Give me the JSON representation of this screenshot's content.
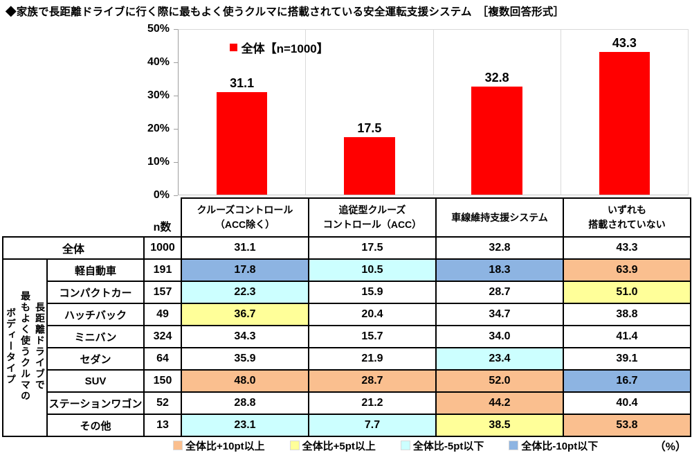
{
  "title": "◆家族で長距離ドライブに行く際に最もよく使うクルマに搭載されている安全運転支援システム　［複数回答形式］",
  "chart_data": {
    "type": "bar",
    "title": "家族で長距離ドライブに行く際に最もよく使うクルマに搭載されている安全運転支援システム",
    "categories": [
      "クルーズコントロール（ACC除く）",
      "追従型クルーズコントロール（ACC）",
      "車線維持支援システム",
      "いずれも搭載されていない"
    ],
    "values": [
      31.1,
      17.5,
      32.8,
      43.3
    ],
    "value_labels": [
      "31.1",
      "17.5",
      "32.8",
      "43.3"
    ],
    "series_name": "全体",
    "legend_label": "全体【n=1000】",
    "legend_position": "top-left-inside-plot",
    "bar_color": "#FF0000",
    "xlabel": "",
    "ylabel": "",
    "unit": "%",
    "ylim": [
      0,
      50
    ],
    "yticks": [
      "50%",
      "40%",
      "30%",
      "20%",
      "10%",
      "0%"
    ],
    "grid": "vertical category separators only"
  },
  "table": {
    "n_label": "n数",
    "col_headers": [
      [
        "クルーズコントロール",
        "（ACC除く）"
      ],
      [
        "追従型クルーズ",
        "コントロール（ACC）"
      ],
      [
        "車線維持支援システム"
      ],
      [
        "いずれも",
        "搭載されていない"
      ]
    ],
    "side_label_lines": [
      "長距離ドライブで",
      "最もよく使うクルマの",
      "ボディータイプ"
    ],
    "side_label": "長距離ドライブで最もよく使うクルマのボディータイプ",
    "total_row": {
      "label": "全体",
      "n": "1000",
      "values": [
        "31.1",
        "17.5",
        "32.8",
        "43.3"
      ],
      "colors": [
        "white",
        "white",
        "white",
        "white"
      ]
    },
    "rows": [
      {
        "label": "軽自動車",
        "n": "191",
        "values": [
          "17.8",
          "10.5",
          "18.3",
          "63.9"
        ],
        "colors": [
          "blue",
          "cyan",
          "blue",
          "orange"
        ]
      },
      {
        "label": "コンパクトカー",
        "n": "157",
        "values": [
          "22.3",
          "15.9",
          "28.7",
          "51.0"
        ],
        "colors": [
          "cyan",
          "white",
          "white",
          "yellow"
        ]
      },
      {
        "label": "ハッチバック",
        "n": "49",
        "values": [
          "36.7",
          "20.4",
          "34.7",
          "38.8"
        ],
        "colors": [
          "yellow",
          "white",
          "white",
          "white"
        ]
      },
      {
        "label": "ミニバン",
        "n": "324",
        "values": [
          "34.3",
          "15.7",
          "34.0",
          "41.4"
        ],
        "colors": [
          "white",
          "white",
          "white",
          "white"
        ]
      },
      {
        "label": "セダン",
        "n": "64",
        "values": [
          "35.9",
          "21.9",
          "23.4",
          "39.1"
        ],
        "colors": [
          "white",
          "white",
          "cyan",
          "white"
        ]
      },
      {
        "label": "SUV",
        "n": "150",
        "values": [
          "48.0",
          "28.7",
          "52.0",
          "16.7"
        ],
        "colors": [
          "orange",
          "orange",
          "orange",
          "blue"
        ]
      },
      {
        "label": "ステーションワゴン",
        "n": "52",
        "values": [
          "28.8",
          "21.2",
          "44.2",
          "40.4"
        ],
        "colors": [
          "white",
          "white",
          "orange",
          "white"
        ]
      },
      {
        "label": "その他",
        "n": "13",
        "values": [
          "23.1",
          "7.7",
          "38.5",
          "53.8"
        ],
        "colors": [
          "cyan",
          "cyan",
          "yellow",
          "orange"
        ]
      }
    ]
  },
  "legend": {
    "items": [
      {
        "label": "全体比+10pt以上",
        "color": "#FABF8F"
      },
      {
        "label": "全体比+5pt以上",
        "color": "#FFFF99"
      },
      {
        "label": "全体比-5pt以下",
        "color": "#CCFFFF"
      },
      {
        "label": "全体比-10pt以下",
        "color": "#8DB4E2"
      }
    ],
    "unit": "（%）"
  },
  "colors": {
    "white": "#FFFFFF",
    "orange": "#FABF8F",
    "yellow": "#FFFF99",
    "cyan": "#CCFFFF",
    "blue": "#8DB4E2",
    "bar_red": "#FF0000"
  }
}
